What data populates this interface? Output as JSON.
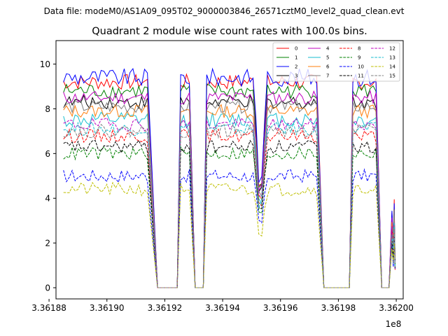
{
  "header": {
    "data_file": "Data file: modeM0/AS1A09_095T02_9000003846_26571cztM0_level2_quad_clean.evt"
  },
  "chart_data": {
    "type": "line",
    "title": "Quadrant 2 module wise count rates with 100.0s bins.",
    "xlabel": "",
    "ylabel": "",
    "x_offset_label": "1e8",
    "xlim": [
      336188240,
      336200240
    ],
    "ylim": [
      -0.5,
      11.05
    ],
    "x_ticks": [
      336188000,
      336190000,
      336192000,
      336194000,
      336196000,
      336198000,
      336200000
    ],
    "x_tick_labels": [
      "3.36188",
      "3.36190",
      "3.36192",
      "3.36194",
      "3.36196",
      "3.36198",
      "3.36200"
    ],
    "y_ticks": [
      0,
      2,
      4,
      6,
      8,
      10
    ],
    "y_tick_labels": [
      "0",
      "2",
      "4",
      "6",
      "8",
      "10"
    ],
    "grid": false,
    "legend_position": "top-right",
    "segments": [
      {
        "start": 336188500,
        "end": 336191400,
        "ramp_end": 336191750
      },
      {
        "start": 336192550,
        "end": 336192900,
        "ramp_end": 336193050
      },
      {
        "start": 336193450,
        "end": 336197300,
        "ramp_end": 336197500,
        "dip_at": 336195300,
        "dip_value": 2.8
      },
      {
        "start": 336198500,
        "end": 336199300,
        "ramp_end": 336199500
      },
      {
        "start": 336199900,
        "end": 336199900,
        "spike": true
      }
    ],
    "series": [
      {
        "name": "0",
        "color": "#ff0000",
        "dash": false,
        "level": 9.2,
        "noise": 0.35
      },
      {
        "name": "1",
        "color": "#008000",
        "dash": false,
        "level": 8.8,
        "noise": 0.35
      },
      {
        "name": "2",
        "color": "#0000ff",
        "dash": false,
        "level": 9.4,
        "noise": 0.4
      },
      {
        "name": "3",
        "color": "#000000",
        "dash": false,
        "level": 8.3,
        "noise": 0.3
      },
      {
        "name": "4",
        "color": "#bf00bf",
        "dash": false,
        "level": 8.5,
        "noise": 0.3
      },
      {
        "name": "5",
        "color": "#17becf",
        "dash": false,
        "level": 7.5,
        "noise": 0.35
      },
      {
        "name": "6",
        "color": "#ff7f0e",
        "dash": false,
        "level": 7.9,
        "noise": 0.3
      },
      {
        "name": "7",
        "color": "#7f7f7f",
        "dash": false,
        "level": 8.1,
        "noise": 0.3
      },
      {
        "name": "8",
        "color": "#ff0000",
        "dash": true,
        "level": 6.8,
        "noise": 0.3
      },
      {
        "name": "9",
        "color": "#008000",
        "dash": true,
        "level": 6.0,
        "noise": 0.3
      },
      {
        "name": "10",
        "color": "#0000ff",
        "dash": true,
        "level": 5.0,
        "noise": 0.3
      },
      {
        "name": "11",
        "color": "#000000",
        "dash": true,
        "level": 6.3,
        "noise": 0.3
      },
      {
        "name": "12",
        "color": "#bf00bf",
        "dash": true,
        "level": 7.3,
        "noise": 0.3
      },
      {
        "name": "13",
        "color": "#17becf",
        "dash": true,
        "level": 7.1,
        "noise": 0.3
      },
      {
        "name": "14",
        "color": "#bfbf00",
        "dash": true,
        "level": 4.4,
        "noise": 0.3
      },
      {
        "name": "15",
        "color": "#7f7f7f",
        "dash": true,
        "level": 7.0,
        "noise": 0.3
      }
    ]
  }
}
